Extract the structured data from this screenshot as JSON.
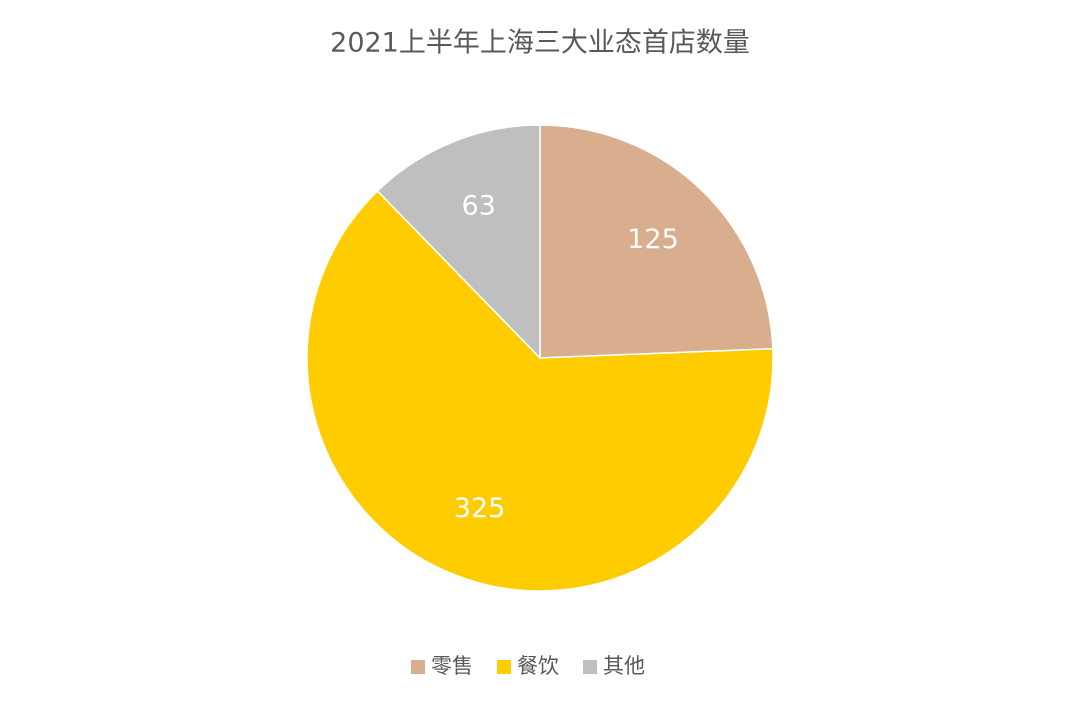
{
  "chart_data": {
    "type": "pie",
    "title": "2021上半年上海三大业态首店数量",
    "categories": [
      "零售",
      "餐饮",
      "其他"
    ],
    "values": [
      125,
      325,
      63
    ],
    "colors": [
      "#d9ae8f",
      "#ffcc00",
      "#bfbfbf"
    ],
    "legend": "bottom"
  }
}
